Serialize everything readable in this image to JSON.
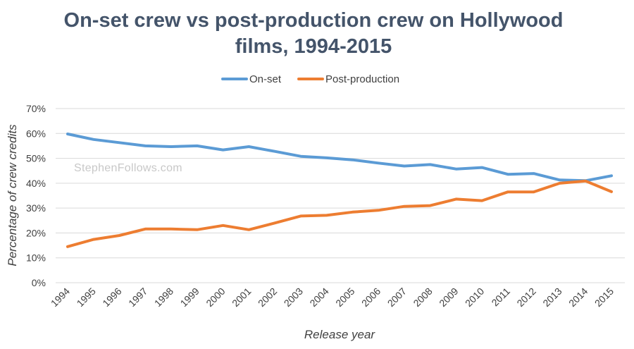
{
  "chart_data": {
    "type": "line",
    "title_lines": [
      "On-set crew vs post-production crew on Hollywood",
      "films, 1994-2015"
    ],
    "xlabel": "Release year",
    "ylabel": "Percentage of crew credits",
    "watermark": "StephenFollows.com",
    "legend_position": "top-center",
    "grid": true,
    "ylim": [
      0,
      70
    ],
    "y_ticks": [
      "0%",
      "10%",
      "20%",
      "30%",
      "40%",
      "50%",
      "60%",
      "70%"
    ],
    "categories": [
      "1994",
      "1995",
      "1996",
      "1997",
      "1998",
      "1999",
      "2000",
      "2001",
      "2002",
      "2003",
      "2004",
      "2005",
      "2006",
      "2007",
      "2008",
      "2009",
      "2010",
      "2011",
      "2012",
      "2013",
      "2014",
      "2015"
    ],
    "series": [
      {
        "name": "On-set",
        "color": "#5b9bd5",
        "values": [
          59.8,
          57.6,
          56.3,
          55.0,
          54.7,
          55.0,
          53.4,
          54.7,
          52.8,
          50.8,
          50.2,
          49.4,
          48.1,
          46.9,
          47.5,
          45.7,
          46.3,
          43.6,
          43.9,
          41.3,
          41.0,
          43.0
        ]
      },
      {
        "name": "Post-production",
        "color": "#ed7d31",
        "values": [
          14.5,
          17.4,
          19.0,
          21.6,
          21.6,
          21.3,
          23.0,
          21.3,
          24.0,
          26.8,
          27.1,
          28.4,
          29.1,
          30.7,
          31.0,
          33.6,
          33.0,
          36.5,
          36.5,
          40.0,
          40.9,
          36.6
        ]
      }
    ]
  }
}
